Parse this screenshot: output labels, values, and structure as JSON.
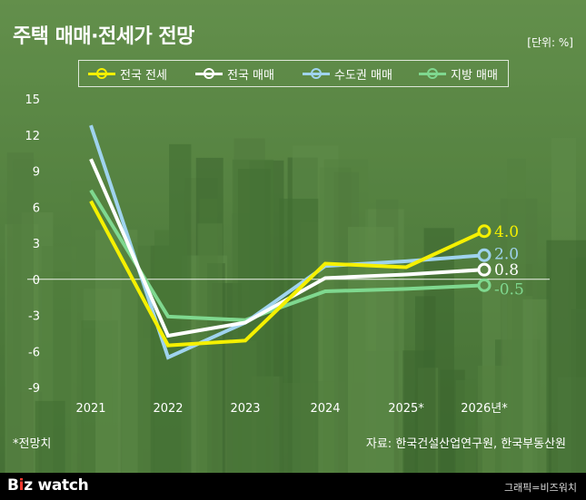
{
  "title": "주택 매매·전세가 전망",
  "unit": "[단위: %]",
  "footnote": "*전망치",
  "source": "자료: 한국건설산업연구원, 한국부동산원",
  "brand": "Bizwatch",
  "credit": "그래픽=비즈워치",
  "colors": {
    "jeonse_national": "#f5f000",
    "sale_national": "#ffffff",
    "sale_capital": "#9fd3ee",
    "sale_regional": "#7fd88f"
  },
  "chart_data": {
    "type": "line",
    "categories": [
      "2021",
      "2022",
      "2023",
      "2024",
      "2025*",
      "2026년*"
    ],
    "yticks": [
      15,
      12,
      9,
      6,
      3,
      0,
      -3,
      -6,
      -9
    ],
    "ylim": [
      -9,
      15
    ],
    "grid": false,
    "legend_position": "top",
    "series": [
      {
        "name": "전국 전세",
        "color_key": "jeonse_national",
        "values": [
          6.5,
          -5.5,
          -5.1,
          1.3,
          1.0,
          4.0
        ],
        "end_label": "4.0"
      },
      {
        "name": "전국 매매",
        "color_key": "sale_national",
        "values": [
          10.0,
          -4.7,
          -3.6,
          0.1,
          0.4,
          0.8
        ],
        "end_label": "0.8"
      },
      {
        "name": "수도권 매매",
        "color_key": "sale_capital",
        "values": [
          12.8,
          -6.5,
          -3.6,
          1.1,
          1.5,
          2.0
        ],
        "end_label": "2.0"
      },
      {
        "name": "지방 매매",
        "color_key": "sale_regional",
        "values": [
          7.4,
          -3.1,
          -3.4,
          -1.0,
          -0.8,
          -0.5
        ],
        "end_label": "-0.5"
      }
    ]
  }
}
